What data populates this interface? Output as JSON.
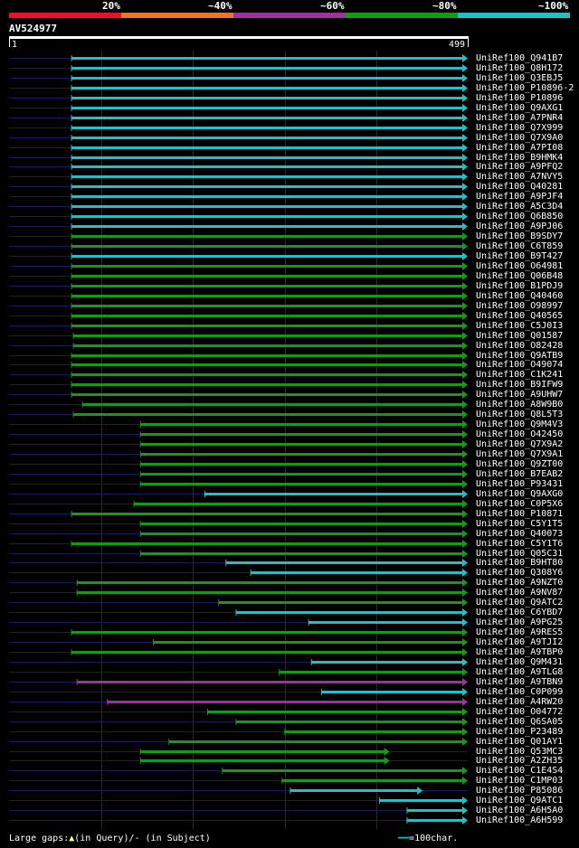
{
  "legend": {
    "labels": [
      "20%",
      "~40%",
      "~60%",
      "~80%",
      "~100%"
    ],
    "colors": [
      "#e8102a",
      "#e87820",
      "#a030a0",
      "#159a15",
      "#20c0c8"
    ]
  },
  "query": {
    "name": "AV524977",
    "start": "1",
    "end": "499",
    "length": 499
  },
  "footer": {
    "large_gaps": "Large gaps:",
    "in_query": "(in Query)/",
    "in_subject": "- (in Subject)",
    "scale": "=100char."
  },
  "chart_data": {
    "type": "alignment",
    "query_length": 499,
    "hits": [
      {
        "name": "UniRef100_Q941B7",
        "start": 68,
        "end": 499,
        "color": "cyan"
      },
      {
        "name": "UniRef100_Q8H172",
        "start": 68,
        "end": 499,
        "color": "cyan"
      },
      {
        "name": "UniRef100_Q3EBJ5",
        "start": 68,
        "end": 499,
        "color": "cyan"
      },
      {
        "name": "UniRef100_P10896-2",
        "start": 68,
        "end": 499,
        "color": "cyan"
      },
      {
        "name": "UniRef100_P10896",
        "start": 68,
        "end": 499,
        "color": "cyan"
      },
      {
        "name": "UniRef100_Q9AXG1",
        "start": 68,
        "end": 499,
        "color": "cyan"
      },
      {
        "name": "UniRef100_A7PNR4",
        "start": 68,
        "end": 499,
        "color": "cyan"
      },
      {
        "name": "UniRef100_Q7X999",
        "start": 68,
        "end": 499,
        "color": "cyan"
      },
      {
        "name": "UniRef100_Q7X9A0",
        "start": 68,
        "end": 499,
        "color": "cyan"
      },
      {
        "name": "UniRef100_A7PI08",
        "start": 68,
        "end": 499,
        "color": "cyan"
      },
      {
        "name": "UniRef100_B9HMK4",
        "start": 68,
        "end": 499,
        "color": "cyan"
      },
      {
        "name": "UniRef100_A9PFQ2",
        "start": 68,
        "end": 499,
        "color": "cyan"
      },
      {
        "name": "UniRef100_A7NVY5",
        "start": 68,
        "end": 499,
        "color": "cyan"
      },
      {
        "name": "UniRef100_Q40281",
        "start": 68,
        "end": 499,
        "color": "cyan"
      },
      {
        "name": "UniRef100_A9PJF4",
        "start": 68,
        "end": 499,
        "color": "cyan"
      },
      {
        "name": "UniRef100_A5C3D4",
        "start": 68,
        "end": 499,
        "color": "cyan"
      },
      {
        "name": "UniRef100_Q6B850",
        "start": 68,
        "end": 499,
        "color": "cyan"
      },
      {
        "name": "UniRef100_A9PJ06",
        "start": 68,
        "end": 499,
        "color": "cyan"
      },
      {
        "name": "UniRef100_B9SDY7",
        "start": 68,
        "end": 499,
        "color": "green"
      },
      {
        "name": "UniRef100_C6T859",
        "start": 68,
        "end": 499,
        "color": "green"
      },
      {
        "name": "UniRef100_B9T427",
        "start": 68,
        "end": 499,
        "color": "cyan"
      },
      {
        "name": "UniRef100_O64981",
        "start": 68,
        "end": 499,
        "color": "green"
      },
      {
        "name": "UniRef100_Q06B48",
        "start": 68,
        "end": 499,
        "color": "green"
      },
      {
        "name": "UniRef100_B1PDJ9",
        "start": 68,
        "end": 499,
        "color": "green"
      },
      {
        "name": "UniRef100_Q40460",
        "start": 68,
        "end": 499,
        "color": "green"
      },
      {
        "name": "UniRef100_O98997",
        "start": 68,
        "end": 499,
        "color": "green"
      },
      {
        "name": "UniRef100_Q40565",
        "start": 68,
        "end": 499,
        "color": "green"
      },
      {
        "name": "UniRef100_C5J0I3",
        "start": 68,
        "end": 499,
        "color": "green"
      },
      {
        "name": "UniRef100_Q01587",
        "start": 70,
        "end": 499,
        "color": "green"
      },
      {
        "name": "UniRef100_O82428",
        "start": 70,
        "end": 499,
        "color": "green"
      },
      {
        "name": "UniRef100_Q9ATB9",
        "start": 68,
        "end": 499,
        "color": "green"
      },
      {
        "name": "UniRef100_O49074",
        "start": 68,
        "end": 499,
        "color": "green"
      },
      {
        "name": "UniRef100_C1K241",
        "start": 68,
        "end": 499,
        "color": "green"
      },
      {
        "name": "UniRef100_B9IFW9",
        "start": 68,
        "end": 499,
        "color": "green"
      },
      {
        "name": "UniRef100_A9UHW7",
        "start": 68,
        "end": 499,
        "color": "green"
      },
      {
        "name": "UniRef100_A8W9B0",
        "start": 80,
        "end": 499,
        "color": "green"
      },
      {
        "name": "UniRef100_Q8L5T3",
        "start": 70,
        "end": 499,
        "color": "green"
      },
      {
        "name": "UniRef100_Q9M4V3",
        "start": 143,
        "end": 499,
        "color": "green"
      },
      {
        "name": "UniRef100_O42450",
        "start": 143,
        "end": 499,
        "color": "green"
      },
      {
        "name": "UniRef100_Q7X9A2",
        "start": 143,
        "end": 499,
        "color": "green"
      },
      {
        "name": "UniRef100_Q7X9A1",
        "start": 143,
        "end": 499,
        "color": "green"
      },
      {
        "name": "UniRef100_Q9ZT00",
        "start": 143,
        "end": 499,
        "color": "green"
      },
      {
        "name": "UniRef100_B7EAB2",
        "start": 143,
        "end": 499,
        "color": "green"
      },
      {
        "name": "UniRef100_P93431",
        "start": 143,
        "end": 499,
        "color": "green"
      },
      {
        "name": "UniRef100_Q9AXG0",
        "start": 213,
        "end": 499,
        "color": "cyan"
      },
      {
        "name": "UniRef100_C0P5X6",
        "start": 136,
        "end": 499,
        "color": "green"
      },
      {
        "name": "UniRef100_P10871",
        "start": 68,
        "end": 499,
        "color": "green"
      },
      {
        "name": "UniRef100_C5Y1T5",
        "start": 143,
        "end": 499,
        "color": "green"
      },
      {
        "name": "UniRef100_Q40073",
        "start": 143,
        "end": 499,
        "color": "green"
      },
      {
        "name": "UniRef100_C5Y1T6",
        "start": 68,
        "end": 499,
        "color": "green"
      },
      {
        "name": "UniRef100_Q05C31",
        "start": 143,
        "end": 499,
        "color": "green"
      },
      {
        "name": "UniRef100_B9HT80",
        "start": 236,
        "end": 499,
        "color": "cyan"
      },
      {
        "name": "UniRef100_Q308Y6",
        "start": 263,
        "end": 499,
        "color": "cyan"
      },
      {
        "name": "UniRef100_A9NZT0",
        "start": 74,
        "end": 499,
        "color": "green"
      },
      {
        "name": "UniRef100_A9NV87",
        "start": 74,
        "end": 499,
        "color": "green"
      },
      {
        "name": "UniRef100_Q9ATC2",
        "start": 228,
        "end": 499,
        "color": "green"
      },
      {
        "name": "UniRef100_C6YBD7",
        "start": 247,
        "end": 499,
        "color": "cyan"
      },
      {
        "name": "UniRef100_A9PG25",
        "start": 326,
        "end": 499,
        "color": "cyan"
      },
      {
        "name": "UniRef100_A9RES5",
        "start": 68,
        "end": 499,
        "color": "green"
      },
      {
        "name": "UniRef100_A9TJI2",
        "start": 157,
        "end": 499,
        "color": "green"
      },
      {
        "name": "UniRef100_A9TBP0",
        "start": 68,
        "end": 499,
        "color": "green"
      },
      {
        "name": "UniRef100_Q9M431",
        "start": 329,
        "end": 499,
        "color": "cyan"
      },
      {
        "name": "UniRef100_A9TLG8",
        "start": 294,
        "end": 499,
        "color": "green"
      },
      {
        "name": "UniRef100_A9TBN9",
        "start": 74,
        "end": 499,
        "color": "purple"
      },
      {
        "name": "UniRef100_C0P099",
        "start": 340,
        "end": 499,
        "color": "cyan"
      },
      {
        "name": "UniRef100_A4RW20",
        "start": 107,
        "end": 499,
        "color": "purple"
      },
      {
        "name": "UniRef100_O04772",
        "start": 216,
        "end": 499,
        "color": "green"
      },
      {
        "name": "UniRef100_Q6SA05",
        "start": 247,
        "end": 499,
        "color": "green"
      },
      {
        "name": "UniRef100_P23489",
        "start": 300,
        "end": 499,
        "color": "green"
      },
      {
        "name": "UniRef100_Q01AY1",
        "start": 174,
        "end": 499,
        "color": "green"
      },
      {
        "name": "UniRef100_Q53MC3",
        "start": 143,
        "end": 414,
        "color": "green"
      },
      {
        "name": "UniRef100_A2ZH35",
        "start": 143,
        "end": 414,
        "color": "green"
      },
      {
        "name": "UniRef100_C1E4S4",
        "start": 232,
        "end": 499,
        "color": "green"
      },
      {
        "name": "UniRef100_C1MP03",
        "start": 297,
        "end": 499,
        "color": "green"
      },
      {
        "name": "UniRef100_P85086",
        "start": 306,
        "end": 450,
        "color": "cyan"
      },
      {
        "name": "UniRef100_Q9ATC1",
        "start": 403,
        "end": 499,
        "color": "cyan"
      },
      {
        "name": "UniRef100_A6H5A0",
        "start": 433,
        "end": 499,
        "color": "cyan"
      },
      {
        "name": "UniRef100_A6H599",
        "start": 433,
        "end": 499,
        "color": "cyan"
      }
    ]
  }
}
